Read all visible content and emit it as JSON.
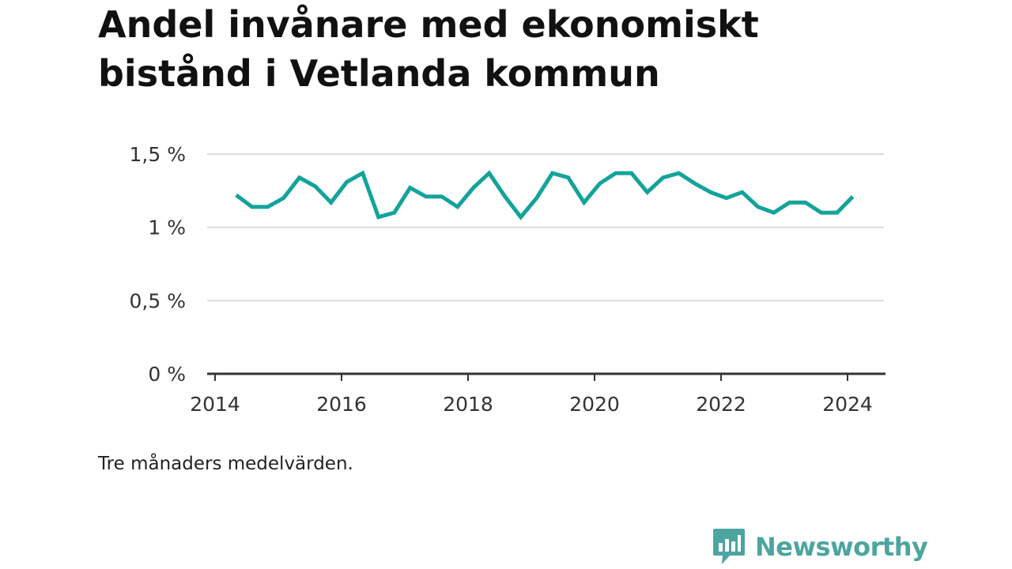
{
  "chart_data": {
    "type": "line",
    "title": "Andel invånare med ekonomiskt bistånd i Vetlanda kommun",
    "subtitle": "Tre månaders medelvärden.",
    "xlabel": "",
    "ylabel": "",
    "xlim": [
      2014,
      2024.6
    ],
    "ylim": [
      0,
      1.5
    ],
    "y_ticks": [
      0,
      0.5,
      1,
      1.5
    ],
    "y_tick_labels": [
      "0 %",
      "0,5 %",
      "1 %",
      "1,5 %"
    ],
    "x_ticks": [
      2014,
      2016,
      2018,
      2020,
      2022,
      2024
    ],
    "x_tick_labels": [
      "2014",
      "2016",
      "2018",
      "2020",
      "2022",
      "2024"
    ],
    "grid": true,
    "legend": "none",
    "series": [
      {
        "color": "#14a39a",
        "points": [
          [
            "2014-05",
            1.22
          ],
          [
            "2014-08",
            1.14
          ],
          [
            "2014-11",
            1.14
          ],
          [
            "2015-02",
            1.2
          ],
          [
            "2015-05",
            1.34
          ],
          [
            "2015-08",
            1.28
          ],
          [
            "2015-11",
            1.17
          ],
          [
            "2016-02",
            1.31
          ],
          [
            "2016-05",
            1.37
          ],
          [
            "2016-08",
            1.07
          ],
          [
            "2016-11",
            1.1
          ],
          [
            "2017-02",
            1.27
          ],
          [
            "2017-05",
            1.21
          ],
          [
            "2017-08",
            1.21
          ],
          [
            "2017-11",
            1.14
          ],
          [
            "2018-02",
            1.27
          ],
          [
            "2018-05",
            1.37
          ],
          [
            "2018-08",
            1.21
          ],
          [
            "2018-11",
            1.07
          ],
          [
            "2019-02",
            1.2
          ],
          [
            "2019-05",
            1.37
          ],
          [
            "2019-08",
            1.34
          ],
          [
            "2019-11",
            1.17
          ],
          [
            "2020-02",
            1.3
          ],
          [
            "2020-05",
            1.37
          ],
          [
            "2020-08",
            1.37
          ],
          [
            "2020-11",
            1.24
          ],
          [
            "2021-02",
            1.34
          ],
          [
            "2021-05",
            1.37
          ],
          [
            "2021-08",
            1.3
          ],
          [
            "2021-11",
            1.24
          ],
          [
            "2022-02",
            1.2
          ],
          [
            "2022-05",
            1.24
          ],
          [
            "2022-08",
            1.14
          ],
          [
            "2022-11",
            1.1
          ],
          [
            "2023-02",
            1.17
          ],
          [
            "2023-05",
            1.17
          ],
          [
            "2023-08",
            1.1
          ],
          [
            "2023-11",
            1.1
          ],
          [
            "2024-02",
            1.21
          ]
        ]
      }
    ]
  },
  "footer": {
    "brand_name": "Newsworthy",
    "brand_color": "#4ca5a0",
    "logo_icon": "newsworthy-bar-chart-speech-bubble-icon"
  }
}
